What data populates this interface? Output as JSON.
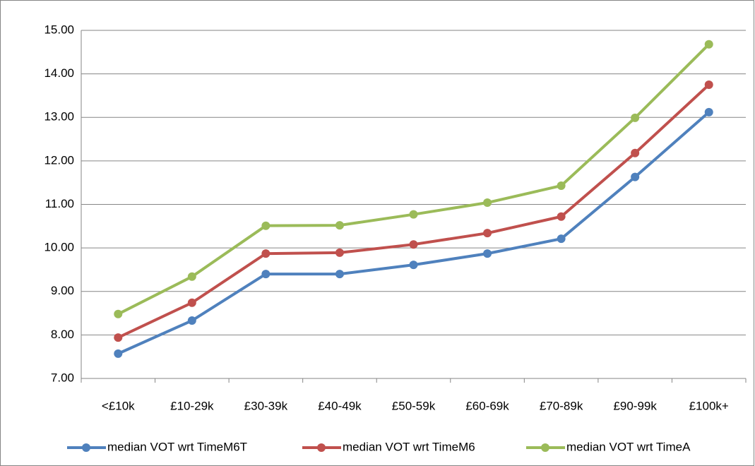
{
  "chart_data": {
    "type": "line",
    "categories": [
      "<£10k",
      "£10-29k",
      "£30-39k",
      "£40-49k",
      "£50-59k",
      "£60-69k",
      "£70-89k",
      "£90-99k",
      "£100k+"
    ],
    "series": [
      {
        "name": "median VOT wrt TimeM6T",
        "color": "#4f81bd",
        "values": [
          7.57,
          8.33,
          9.4,
          9.4,
          9.61,
          9.87,
          10.21,
          11.63,
          13.12
        ]
      },
      {
        "name": "median VOT wrt TimeM6",
        "color": "#c0504d",
        "values": [
          7.94,
          8.74,
          9.87,
          9.89,
          10.08,
          10.34,
          10.72,
          12.18,
          13.75
        ]
      },
      {
        "name": "median VOT wrt TimeA",
        "color": "#9bbb59",
        "values": [
          8.48,
          9.34,
          10.51,
          10.52,
          10.77,
          11.04,
          11.43,
          12.99,
          14.68
        ]
      }
    ],
    "ylim": [
      7,
      15
    ],
    "yticks": [
      {
        "value": 7,
        "label": "7.00"
      },
      {
        "value": 8,
        "label": "8.00"
      },
      {
        "value": 9,
        "label": "9.00"
      },
      {
        "value": 10,
        "label": "10.00"
      },
      {
        "value": 11,
        "label": "11.00"
      },
      {
        "value": 12,
        "label": "12.00"
      },
      {
        "value": 13,
        "label": "13.00"
      },
      {
        "value": 14,
        "label": "14.00"
      },
      {
        "value": 15,
        "label": "15.00"
      }
    ],
    "grid": true,
    "legend": "bottom"
  }
}
